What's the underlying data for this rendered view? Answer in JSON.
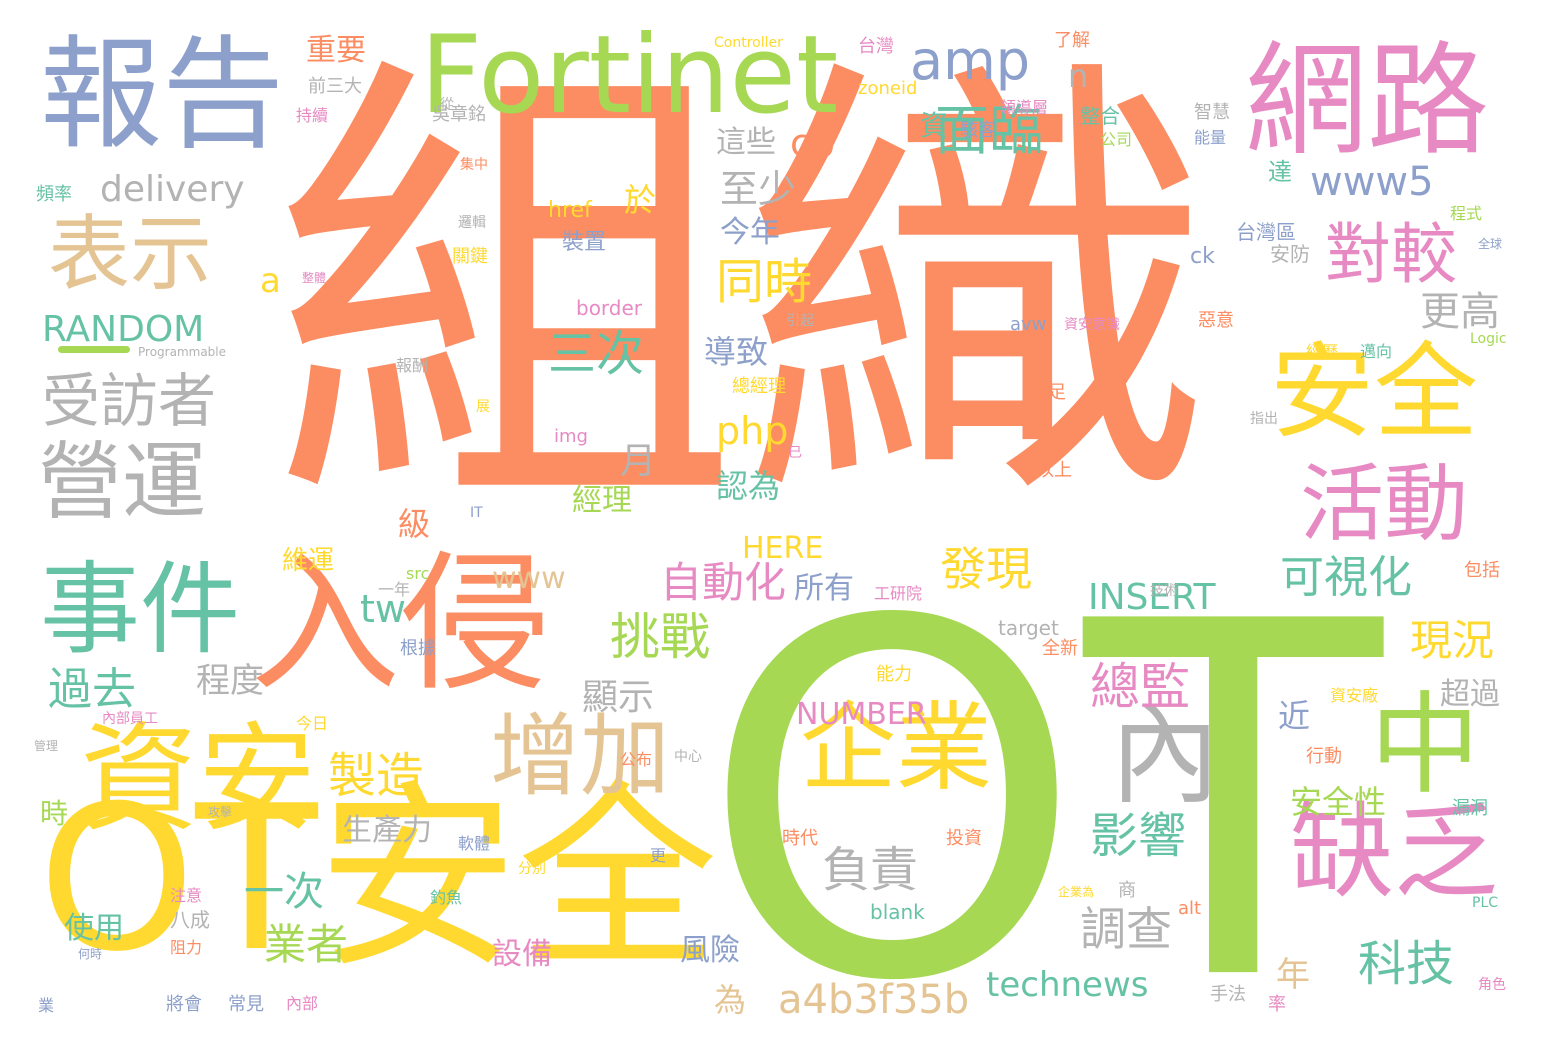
{
  "colors": {
    "orange": "#fc8d62",
    "green": "#a6d854",
    "blue": "#8da0cb",
    "pink": "#e78ac3",
    "yellow": "#ffd92f",
    "tan": "#e5c494",
    "gray": "#b3b3b3",
    "teal": "#66c2a5"
  },
  "words": [
    {
      "text": "組織",
      "color": "orange"
    },
    {
      "text": "OT",
      "color": "green"
    },
    {
      "text": "OT安全",
      "color": "yellow"
    },
    {
      "text": "報告",
      "color": "blue"
    },
    {
      "text": "Fortinet",
      "color": "green"
    },
    {
      "text": "網路",
      "color": "pink"
    },
    {
      "text": "入侵",
      "color": "orange"
    },
    {
      "text": "資安",
      "color": "yellow"
    },
    {
      "text": "事件",
      "color": "teal"
    },
    {
      "text": "表示",
      "color": "tan"
    },
    {
      "text": "營運",
      "color": "gray"
    },
    {
      "text": "受訪者",
      "color": "gray"
    },
    {
      "text": "安全",
      "color": "yellow"
    },
    {
      "text": "活動",
      "color": "pink"
    },
    {
      "text": "中",
      "color": "green"
    },
    {
      "text": "缺乏",
      "color": "pink"
    },
    {
      "text": "企業",
      "color": "yellow"
    },
    {
      "text": "內",
      "color": "gray"
    },
    {
      "text": "增加",
      "color": "tan"
    },
    {
      "text": "對較",
      "color": "pink"
    },
    {
      "text": "amp",
      "color": "blue"
    },
    {
      "text": "面臨",
      "color": "teal"
    },
    {
      "text": "製造",
      "color": "yellow"
    },
    {
      "text": "挑戰",
      "color": "green"
    },
    {
      "text": "自動化",
      "color": "pink"
    },
    {
      "text": "可視化",
      "color": "teal"
    },
    {
      "text": "發現",
      "color": "yellow"
    },
    {
      "text": "總監",
      "color": "pink"
    },
    {
      "text": "影響",
      "color": "teal"
    },
    {
      "text": "負責",
      "color": "gray"
    },
    {
      "text": "調查",
      "color": "gray"
    },
    {
      "text": "科技",
      "color": "teal"
    },
    {
      "text": "technews",
      "color": "teal"
    },
    {
      "text": "a4b3f35b",
      "color": "tan"
    },
    {
      "text": "www5",
      "color": "blue"
    },
    {
      "text": "delivery",
      "color": "gray"
    },
    {
      "text": "RANDOM",
      "color": "teal"
    },
    {
      "text": "過去",
      "color": "teal"
    },
    {
      "text": "同時",
      "color": "yellow"
    },
    {
      "text": "三次",
      "color": "teal"
    },
    {
      "text": "INSERT",
      "color": "teal"
    },
    {
      "text": "NUMBER",
      "color": "pink"
    },
    {
      "text": "HERE",
      "color": "yellow"
    },
    {
      "text": "www",
      "color": "tan"
    },
    {
      "text": "一次",
      "color": "teal"
    },
    {
      "text": "業者",
      "color": "green"
    },
    {
      "text": "現況",
      "color": "yellow"
    },
    {
      "text": "至少",
      "color": "gray"
    },
    {
      "text": "今年",
      "color": "blue"
    },
    {
      "text": "更高",
      "color": "gray"
    },
    {
      "text": "cb",
      "color": "orange"
    },
    {
      "text": "php",
      "color": "yellow"
    },
    {
      "text": "tw",
      "color": "teal"
    },
    {
      "text": "a",
      "color": "yellow"
    },
    {
      "text": "n",
      "color": "gray"
    },
    {
      "text": "重要",
      "color": "orange"
    },
    {
      "text": "程度",
      "color": "gray"
    },
    {
      "text": "顯示",
      "color": "gray"
    },
    {
      "text": "生產力",
      "color": "gray"
    },
    {
      "text": "安全性",
      "color": "green"
    },
    {
      "text": "超過",
      "color": "gray"
    },
    {
      "text": "導致",
      "color": "blue"
    },
    {
      "text": "認為",
      "color": "teal"
    },
    {
      "text": "月",
      "color": "gray"
    },
    {
      "text": "經理",
      "color": "green"
    },
    {
      "text": "所有",
      "color": "blue"
    },
    {
      "text": "近",
      "color": "blue"
    },
    {
      "text": "年",
      "color": "tan"
    },
    {
      "text": "風險",
      "color": "blue"
    },
    {
      "text": "設備",
      "color": "pink"
    },
    {
      "text": "使用",
      "color": "teal"
    },
    {
      "text": "級",
      "color": "orange"
    },
    {
      "text": "維運",
      "color": "yellow"
    },
    {
      "text": "時",
      "color": "green"
    },
    {
      "text": "為",
      "color": "tan"
    },
    {
      "text": "於",
      "color": "yellow"
    },
    {
      "text": "資",
      "color": "teal"
    },
    {
      "text": "這些",
      "color": "gray"
    },
    {
      "text": "href",
      "color": "yellow"
    },
    {
      "text": "裝置",
      "color": "blue"
    },
    {
      "text": "border",
      "color": "pink"
    },
    {
      "text": "img",
      "color": "pink"
    },
    {
      "text": "src",
      "color": "green"
    },
    {
      "text": "target",
      "color": "gray"
    },
    {
      "text": "blank",
      "color": "teal"
    },
    {
      "text": "alt",
      "color": "orange"
    },
    {
      "text": "ck",
      "color": "blue"
    },
    {
      "text": "avw",
      "color": "blue"
    },
    {
      "text": "達",
      "color": "teal"
    },
    {
      "text": "台灣區",
      "color": "blue"
    },
    {
      "text": "安防",
      "color": "gray"
    },
    {
      "text": "台灣",
      "color": "pink"
    },
    {
      "text": "了解",
      "color": "orange"
    },
    {
      "text": "zoneid",
      "color": "yellow"
    },
    {
      "text": "Controller",
      "color": "yellow"
    },
    {
      "text": "前三大",
      "color": "gray"
    },
    {
      "text": "持續",
      "color": "pink"
    },
    {
      "text": "頻率",
      "color": "teal"
    },
    {
      "text": "吳章銘",
      "color": "gray"
    },
    {
      "text": "整合",
      "color": "teal"
    },
    {
      "text": "公司",
      "color": "green"
    },
    {
      "text": "智慧",
      "color": "gray"
    },
    {
      "text": "能量",
      "color": "blue"
    },
    {
      "text": "駭客",
      "color": "blue"
    },
    {
      "text": "領導層",
      "color": "pink"
    },
    {
      "text": "從",
      "color": "gray"
    },
    {
      "text": "集中",
      "color": "orange"
    },
    {
      "text": "邏輯",
      "color": "gray"
    },
    {
      "text": "關鍵",
      "color": "yellow"
    },
    {
      "text": "程式",
      "color": "green"
    },
    {
      "text": "Programmable",
      "color": "gray"
    },
    {
      "text": "引起",
      "color": "gray"
    },
    {
      "text": "資安意識",
      "color": "pink"
    },
    {
      "text": "惡意",
      "color": "orange"
    },
    {
      "text": "經歷",
      "color": "yellow"
    },
    {
      "text": "邁向",
      "color": "teal"
    },
    {
      "text": "Logic",
      "color": "green"
    },
    {
      "text": "報酬",
      "color": "gray"
    },
    {
      "text": "總經理",
      "color": "yellow"
    },
    {
      "text": "不足",
      "color": "orange"
    },
    {
      "text": "以上",
      "color": "orange"
    },
    {
      "text": "展",
      "color": "yellow"
    },
    {
      "text": "指出",
      "color": "gray"
    },
    {
      "text": "IT",
      "color": "blue"
    },
    {
      "text": "已",
      "color": "pink"
    },
    {
      "text": "技術",
      "color": "gray"
    },
    {
      "text": "包括",
      "color": "orange"
    },
    {
      "text": "一年",
      "color": "gray"
    },
    {
      "text": "根據",
      "color": "blue"
    },
    {
      "text": "工研院",
      "color": "pink"
    },
    {
      "text": "全新",
      "color": "orange"
    },
    {
      "text": "能力",
      "color": "yellow"
    },
    {
      "text": "內部員工",
      "color": "pink"
    },
    {
      "text": "今日",
      "color": "yellow"
    },
    {
      "text": "公布",
      "color": "orange"
    },
    {
      "text": "中心",
      "color": "gray"
    },
    {
      "text": "行動",
      "color": "orange"
    },
    {
      "text": "資安廠",
      "color": "yellow"
    },
    {
      "text": "時代",
      "color": "orange"
    },
    {
      "text": "投資",
      "color": "orange"
    },
    {
      "text": "軟體",
      "color": "blue"
    },
    {
      "text": "漏洞",
      "color": "teal"
    },
    {
      "text": "分別",
      "color": "yellow"
    },
    {
      "text": "注意",
      "color": "pink"
    },
    {
      "text": "八成",
      "color": "gray"
    },
    {
      "text": "阻力",
      "color": "orange"
    },
    {
      "text": "釣魚",
      "color": "teal"
    },
    {
      "text": "商",
      "color": "gray"
    },
    {
      "text": "企業為",
      "color": "yellow"
    },
    {
      "text": "PLC",
      "color": "teal"
    },
    {
      "text": "將會",
      "color": "blue"
    },
    {
      "text": "常見",
      "color": "blue"
    },
    {
      "text": "內部",
      "color": "pink"
    },
    {
      "text": "手法",
      "color": "gray"
    },
    {
      "text": "率",
      "color": "pink"
    },
    {
      "text": "角色",
      "color": "pink"
    },
    {
      "text": "業",
      "color": "blue"
    },
    {
      "text": "何時",
      "color": "blue"
    },
    {
      "text": "攻擊",
      "color": "gray"
    },
    {
      "text": "更",
      "color": "blue"
    },
    {
      "text": "全球",
      "color": "blue"
    },
    {
      "text": "整體",
      "color": "pink"
    },
    {
      "text": "管理",
      "color": "gray"
    }
  ]
}
